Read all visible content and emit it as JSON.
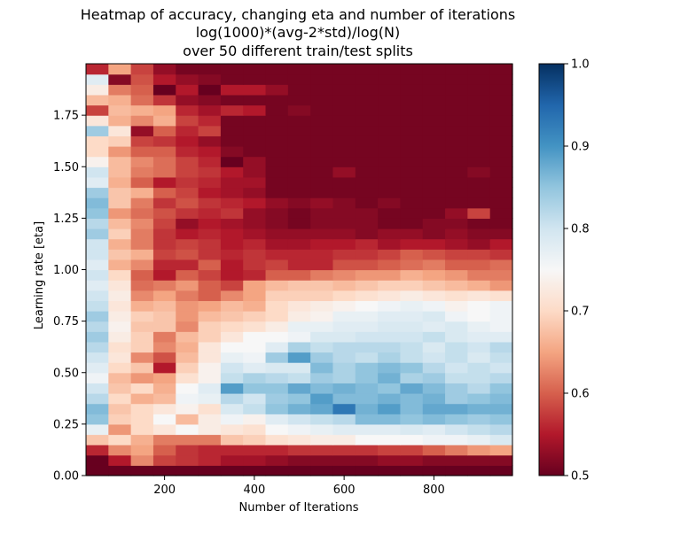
{
  "chart_data": {
    "type": "heatmap",
    "title_lines": [
      "Heatmap of accuracy, changing eta and number of iterations",
      "log(1000)*(avg-2*std)/log(N)",
      "over 50 different train/test splits"
    ],
    "xlabel": "Number of Iterations",
    "ylabel": "Learning rate [eta]",
    "x_range": [
      25,
      975
    ],
    "y_range": [
      0.0,
      2.0
    ],
    "x_ticks": [
      200,
      400,
      600,
      800
    ],
    "x_tick_labels": [
      "200",
      "400",
      "600",
      "800"
    ],
    "y_ticks": [
      0.0,
      0.25,
      0.5,
      0.75,
      1.0,
      1.25,
      1.5,
      1.75
    ],
    "y_tick_labels": [
      "0.00",
      "0.25",
      "0.50",
      "0.75",
      "1.00",
      "1.25",
      "1.50",
      "1.75"
    ],
    "x_centers": [
      50,
      100,
      150,
      200,
      250,
      300,
      350,
      400,
      450,
      500,
      550,
      600,
      650,
      700,
      750,
      800,
      850,
      900,
      950
    ],
    "y_centers": [
      0.025,
      0.075,
      0.125,
      0.175,
      0.225,
      0.275,
      0.325,
      0.375,
      0.425,
      0.475,
      0.525,
      0.575,
      0.625,
      0.675,
      0.725,
      0.775,
      0.825,
      0.875,
      0.925,
      0.975,
      1.025,
      1.075,
      1.125,
      1.175,
      1.225,
      1.275,
      1.325,
      1.375,
      1.425,
      1.475,
      1.525,
      1.575,
      1.625,
      1.675,
      1.725,
      1.775,
      1.825,
      1.875,
      1.925,
      1.975
    ],
    "values": [
      [
        0.5,
        0.5,
        0.5,
        0.5,
        0.5,
        0.5,
        0.5,
        0.5,
        0.5,
        0.5,
        0.5,
        0.5,
        0.5,
        0.5,
        0.5,
        0.5,
        0.5,
        0.5,
        0.5
      ],
      [
        0.5,
        0.55,
        0.63,
        0.58,
        0.57,
        0.56,
        0.54,
        0.54,
        0.53,
        0.52,
        0.52,
        0.52,
        0.52,
        0.53,
        0.53,
        0.52,
        0.52,
        0.52,
        0.52
      ],
      [
        0.56,
        0.63,
        0.65,
        0.6,
        0.57,
        0.56,
        0.56,
        0.56,
        0.56,
        0.57,
        0.57,
        0.57,
        0.57,
        0.58,
        0.58,
        0.6,
        0.62,
        0.64,
        0.65
      ],
      [
        0.68,
        0.7,
        0.66,
        0.62,
        0.62,
        0.62,
        0.68,
        0.69,
        0.71,
        0.72,
        0.73,
        0.73,
        0.75,
        0.75,
        0.75,
        0.76,
        0.76,
        0.77,
        0.79
      ],
      [
        0.77,
        0.64,
        0.7,
        0.72,
        0.75,
        0.73,
        0.72,
        0.71,
        0.75,
        0.76,
        0.77,
        0.78,
        0.78,
        0.78,
        0.79,
        0.78,
        0.8,
        0.81,
        0.82
      ],
      [
        0.85,
        0.69,
        0.7,
        0.75,
        0.67,
        0.73,
        0.76,
        0.74,
        0.78,
        0.8,
        0.81,
        0.82,
        0.86,
        0.86,
        0.85,
        0.86,
        0.85,
        0.84,
        0.85
      ],
      [
        0.86,
        0.68,
        0.7,
        0.72,
        0.74,
        0.71,
        0.79,
        0.81,
        0.85,
        0.87,
        0.88,
        0.93,
        0.87,
        0.89,
        0.86,
        0.88,
        0.88,
        0.87,
        0.87
      ],
      [
        0.82,
        0.7,
        0.66,
        0.67,
        0.76,
        0.77,
        0.82,
        0.8,
        0.84,
        0.85,
        0.89,
        0.86,
        0.86,
        0.87,
        0.86,
        0.87,
        0.84,
        0.85,
        0.86
      ],
      [
        0.8,
        0.68,
        0.7,
        0.66,
        0.75,
        0.78,
        0.89,
        0.85,
        0.85,
        0.88,
        0.86,
        0.87,
        0.86,
        0.85,
        0.88,
        0.86,
        0.84,
        0.82,
        0.85
      ],
      [
        0.76,
        0.67,
        0.64,
        0.65,
        0.71,
        0.74,
        0.81,
        0.83,
        0.82,
        0.81,
        0.84,
        0.83,
        0.85,
        0.87,
        0.83,
        0.84,
        0.81,
        0.81,
        0.82
      ],
      [
        0.78,
        0.7,
        0.68,
        0.55,
        0.69,
        0.74,
        0.8,
        0.78,
        0.79,
        0.79,
        0.86,
        0.83,
        0.85,
        0.86,
        0.85,
        0.82,
        0.8,
        0.81,
        0.8
      ],
      [
        0.8,
        0.72,
        0.63,
        0.59,
        0.67,
        0.72,
        0.77,
        0.76,
        0.84,
        0.89,
        0.84,
        0.82,
        0.81,
        0.83,
        0.81,
        0.8,
        0.81,
        0.79,
        0.81
      ],
      [
        0.82,
        0.71,
        0.69,
        0.63,
        0.66,
        0.72,
        0.75,
        0.75,
        0.78,
        0.83,
        0.81,
        0.82,
        0.82,
        0.82,
        0.81,
        0.79,
        0.81,
        0.8,
        0.82
      ],
      [
        0.84,
        0.73,
        0.69,
        0.62,
        0.67,
        0.69,
        0.72,
        0.75,
        0.75,
        0.76,
        0.79,
        0.79,
        0.8,
        0.8,
        0.8,
        0.81,
        0.79,
        0.78,
        0.78
      ],
      [
        0.82,
        0.74,
        0.68,
        0.68,
        0.63,
        0.69,
        0.7,
        0.71,
        0.73,
        0.77,
        0.77,
        0.78,
        0.78,
        0.79,
        0.79,
        0.78,
        0.79,
        0.77,
        0.76
      ],
      [
        0.84,
        0.73,
        0.69,
        0.68,
        0.64,
        0.67,
        0.68,
        0.69,
        0.7,
        0.73,
        0.74,
        0.77,
        0.77,
        0.78,
        0.78,
        0.79,
        0.76,
        0.75,
        0.76
      ],
      [
        0.81,
        0.72,
        0.66,
        0.67,
        0.64,
        0.65,
        0.67,
        0.66,
        0.7,
        0.72,
        0.73,
        0.74,
        0.75,
        0.76,
        0.77,
        0.76,
        0.74,
        0.75,
        0.76
      ],
      [
        0.8,
        0.73,
        0.63,
        0.65,
        0.62,
        0.6,
        0.63,
        0.65,
        0.69,
        0.69,
        0.69,
        0.7,
        0.71,
        0.72,
        0.73,
        0.72,
        0.71,
        0.72,
        0.71
      ],
      [
        0.78,
        0.72,
        0.61,
        0.62,
        0.64,
        0.6,
        0.58,
        0.65,
        0.67,
        0.68,
        0.68,
        0.67,
        0.68,
        0.69,
        0.69,
        0.68,
        0.67,
        0.66,
        0.64
      ],
      [
        0.8,
        0.7,
        0.6,
        0.55,
        0.6,
        0.58,
        0.55,
        0.56,
        0.6,
        0.6,
        0.62,
        0.63,
        0.64,
        0.64,
        0.66,
        0.65,
        0.64,
        0.62,
        0.62
      ],
      [
        0.78,
        0.66,
        0.63,
        0.56,
        0.56,
        0.6,
        0.55,
        0.57,
        0.58,
        0.56,
        0.56,
        0.59,
        0.59,
        0.6,
        0.61,
        0.62,
        0.6,
        0.6,
        0.61
      ],
      [
        0.8,
        0.68,
        0.66,
        0.58,
        0.59,
        0.57,
        0.56,
        0.57,
        0.56,
        0.56,
        0.56,
        0.57,
        0.57,
        0.58,
        0.6,
        0.59,
        0.58,
        0.58,
        0.57
      ],
      [
        0.8,
        0.66,
        0.62,
        0.57,
        0.58,
        0.57,
        0.55,
        0.56,
        0.54,
        0.54,
        0.55,
        0.55,
        0.56,
        0.54,
        0.55,
        0.55,
        0.54,
        0.53,
        0.55
      ],
      [
        0.84,
        0.69,
        0.62,
        0.57,
        0.55,
        0.56,
        0.55,
        0.54,
        0.53,
        0.53,
        0.53,
        0.53,
        0.52,
        0.53,
        0.53,
        0.52,
        0.53,
        0.52,
        0.52
      ],
      [
        0.82,
        0.67,
        0.63,
        0.58,
        0.53,
        0.55,
        0.54,
        0.53,
        0.52,
        0.51,
        0.52,
        0.52,
        0.52,
        0.51,
        0.51,
        0.52,
        0.52,
        0.51,
        0.51
      ],
      [
        0.85,
        0.64,
        0.61,
        0.59,
        0.57,
        0.56,
        0.57,
        0.53,
        0.52,
        0.51,
        0.52,
        0.52,
        0.52,
        0.51,
        0.51,
        0.51,
        0.53,
        0.58,
        0.51
      ],
      [
        0.86,
        0.68,
        0.62,
        0.57,
        0.59,
        0.57,
        0.56,
        0.55,
        0.53,
        0.52,
        0.53,
        0.52,
        0.51,
        0.52,
        0.51,
        0.51,
        0.51,
        0.51,
        0.51
      ],
      [
        0.84,
        0.68,
        0.66,
        0.6,
        0.58,
        0.55,
        0.54,
        0.53,
        0.51,
        0.51,
        0.51,
        0.51,
        0.51,
        0.51,
        0.51,
        0.51,
        0.51,
        0.51,
        0.51
      ],
      [
        0.78,
        0.66,
        0.6,
        0.55,
        0.57,
        0.56,
        0.54,
        0.54,
        0.51,
        0.51,
        0.51,
        0.51,
        0.51,
        0.51,
        0.51,
        0.51,
        0.51,
        0.51,
        0.51
      ],
      [
        0.8,
        0.67,
        0.62,
        0.61,
        0.58,
        0.57,
        0.55,
        0.53,
        0.51,
        0.51,
        0.51,
        0.53,
        0.51,
        0.51,
        0.51,
        0.51,
        0.51,
        0.52,
        0.51
      ],
      [
        0.74,
        0.67,
        0.63,
        0.61,
        0.58,
        0.56,
        0.5,
        0.53,
        0.51,
        0.51,
        0.51,
        0.51,
        0.51,
        0.51,
        0.51,
        0.51,
        0.51,
        0.51,
        0.51
      ],
      [
        0.7,
        0.64,
        0.6,
        0.6,
        0.56,
        0.55,
        0.52,
        0.51,
        0.51,
        0.51,
        0.51,
        0.51,
        0.51,
        0.51,
        0.51,
        0.51,
        0.51,
        0.51,
        0.51
      ],
      [
        0.7,
        0.69,
        0.58,
        0.57,
        0.55,
        0.53,
        0.51,
        0.51,
        0.51,
        0.51,
        0.51,
        0.51,
        0.51,
        0.51,
        0.51,
        0.51,
        0.51,
        0.51,
        0.51
      ],
      [
        0.84,
        0.72,
        0.53,
        0.6,
        0.56,
        0.58,
        0.51,
        0.51,
        0.51,
        0.51,
        0.51,
        0.51,
        0.51,
        0.51,
        0.51,
        0.51,
        0.51,
        0.51,
        0.51
      ],
      [
        0.72,
        0.66,
        0.63,
        0.66,
        0.58,
        0.56,
        0.51,
        0.51,
        0.51,
        0.51,
        0.51,
        0.51,
        0.51,
        0.51,
        0.51,
        0.51,
        0.51,
        0.51,
        0.51
      ],
      [
        0.58,
        0.67,
        0.66,
        0.65,
        0.56,
        0.54,
        0.56,
        0.55,
        0.51,
        0.52,
        0.51,
        0.51,
        0.51,
        0.51,
        0.51,
        0.51,
        0.51,
        0.51,
        0.51
      ],
      [
        0.67,
        0.66,
        0.61,
        0.57,
        0.53,
        0.52,
        0.51,
        0.51,
        0.51,
        0.51,
        0.51,
        0.51,
        0.51,
        0.51,
        0.51,
        0.51,
        0.51,
        0.51,
        0.51
      ],
      [
        0.73,
        0.62,
        0.6,
        0.5,
        0.55,
        0.5,
        0.55,
        0.55,
        0.53,
        0.51,
        0.51,
        0.51,
        0.51,
        0.51,
        0.51,
        0.51,
        0.51,
        0.51,
        0.51
      ],
      [
        0.78,
        0.52,
        0.59,
        0.55,
        0.53,
        0.52,
        0.51,
        0.51,
        0.51,
        0.51,
        0.51,
        0.51,
        0.51,
        0.51,
        0.51,
        0.51,
        0.51,
        0.51,
        0.51
      ],
      [
        0.56,
        0.65,
        0.58,
        0.53,
        0.51,
        0.51,
        0.51,
        0.51,
        0.51,
        0.51,
        0.51,
        0.51,
        0.51,
        0.51,
        0.51,
        0.51,
        0.51,
        0.51,
        0.51
      ]
    ],
    "colorbar": {
      "min": 0.5,
      "max": 1.0,
      "ticks": [
        0.5,
        0.6,
        0.7,
        0.8,
        0.9,
        1.0
      ],
      "tick_labels": [
        "0.5",
        "0.6",
        "0.7",
        "0.8",
        "0.9",
        "1.0"
      ],
      "colormap": "RdBu",
      "colormap_stops": [
        "#67001f",
        "#b2182b",
        "#d6604d",
        "#f4a582",
        "#fddbc7",
        "#f7f7f7",
        "#d1e5f0",
        "#92c5de",
        "#4393c3",
        "#2166ac",
        "#053061"
      ]
    }
  }
}
